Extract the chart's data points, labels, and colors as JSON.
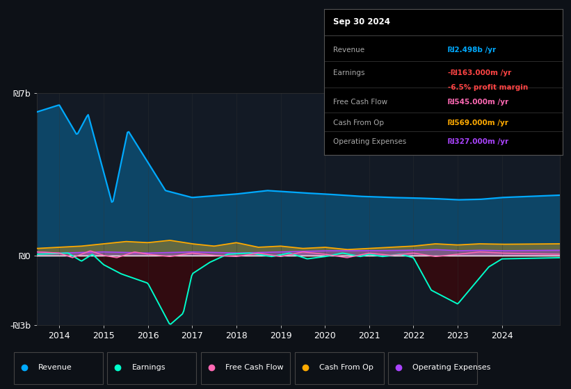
{
  "bg_color": "#0d1117",
  "plot_bg_color": "#131a25",
  "ylim": [
    -3000000000.0,
    7000000000.0
  ],
  "yticks": [
    -3000000000,
    0,
    7000000000
  ],
  "ytick_labels": [
    "-₪3b",
    "₪0",
    "₪7b"
  ],
  "xlim": [
    2013.5,
    2025.3
  ],
  "xticks": [
    2014,
    2015,
    2016,
    2017,
    2018,
    2019,
    2020,
    2021,
    2022,
    2023,
    2024
  ],
  "colors": {
    "revenue": "#00aaff",
    "earnings": "#00ffcc",
    "free_cash_flow": "#ff69b4",
    "cash_from_op": "#ffaa00",
    "operating_expenses": "#aa44ff"
  },
  "info_box": {
    "title": "Sep 30 2024",
    "rows": [
      {
        "label": "Revenue",
        "value": "₪2.498b /yr",
        "value_color": "#00aaff",
        "extra": null,
        "extra_color": null
      },
      {
        "label": "Earnings",
        "value": "-₪163.000m /yr",
        "value_color": "#ff4444",
        "extra": "-6.5% profit margin",
        "extra_color": "#ff4444"
      },
      {
        "label": "Free Cash Flow",
        "value": "₪545.000m /yr",
        "value_color": "#ff69b4",
        "extra": null,
        "extra_color": null
      },
      {
        "label": "Cash From Op",
        "value": "₪569.000m /yr",
        "value_color": "#ffaa00",
        "extra": null,
        "extra_color": null
      },
      {
        "label": "Operating Expenses",
        "value": "₪327.000m /yr",
        "value_color": "#aa44ff",
        "extra": null,
        "extra_color": null
      }
    ]
  },
  "legend_items": [
    {
      "label": "Revenue",
      "color": "#00aaff"
    },
    {
      "label": "Earnings",
      "color": "#00ffcc"
    },
    {
      "label": "Free Cash Flow",
      "color": "#ff69b4"
    },
    {
      "label": "Cash From Op",
      "color": "#ffaa00"
    },
    {
      "label": "Operating Expenses",
      "color": "#aa44ff"
    }
  ]
}
